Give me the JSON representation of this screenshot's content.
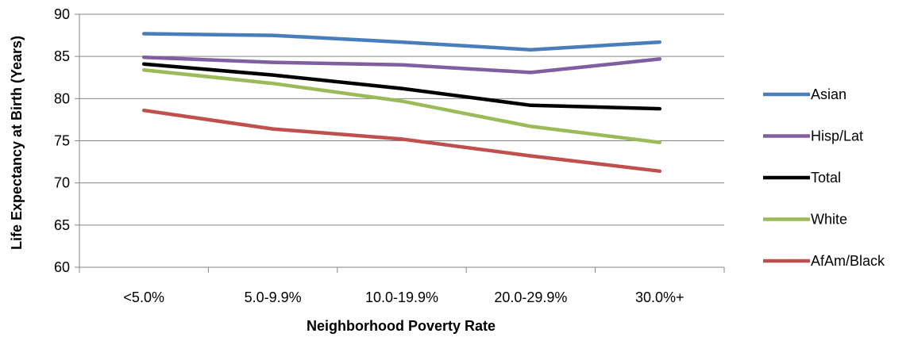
{
  "chart_data": {
    "type": "line",
    "title": "",
    "xlabel": "Neighborhood Poverty Rate",
    "ylabel": "Life Expectancy at Birth (Years)",
    "categories": [
      "<5.0%",
      "5.0-9.9%",
      "10.0-19.9%",
      "20.0-29.9%",
      "30.0%+"
    ],
    "ylim": [
      60,
      90
    ],
    "yticks": [
      60,
      65,
      70,
      75,
      80,
      85,
      90
    ],
    "grid": "horizontal",
    "legend_position": "right",
    "series": [
      {
        "name": "Asian",
        "color": "#4A7EBB",
        "values": [
          87.7,
          87.5,
          86.7,
          85.8,
          86.7
        ]
      },
      {
        "name": "Hisp/Lat",
        "color": "#7F5FA0",
        "values": [
          84.9,
          84.3,
          84.0,
          83.1,
          84.7
        ]
      },
      {
        "name": "Total",
        "color": "#000000",
        "values": [
          84.1,
          82.8,
          81.2,
          79.2,
          78.8
        ]
      },
      {
        "name": "White",
        "color": "#9BBB59",
        "values": [
          83.4,
          81.8,
          79.7,
          76.7,
          74.8
        ]
      },
      {
        "name": "AfAm/Black",
        "color": "#C0504D",
        "values": [
          78.6,
          76.4,
          75.2,
          73.2,
          71.4
        ]
      }
    ]
  }
}
